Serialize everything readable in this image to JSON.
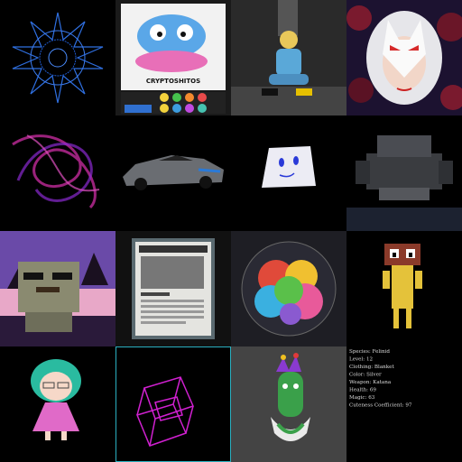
{
  "gallery": {
    "card_title": "CRYPTOSHITOS",
    "stats": [
      "Species: Felinid",
      "Level: 12",
      "Clothing: Blanket",
      "Color: Silver",
      "Weapon: Katana",
      "Health: 69",
      "Magic: 63",
      "Cuteness Coefficient: 97"
    ]
  }
}
